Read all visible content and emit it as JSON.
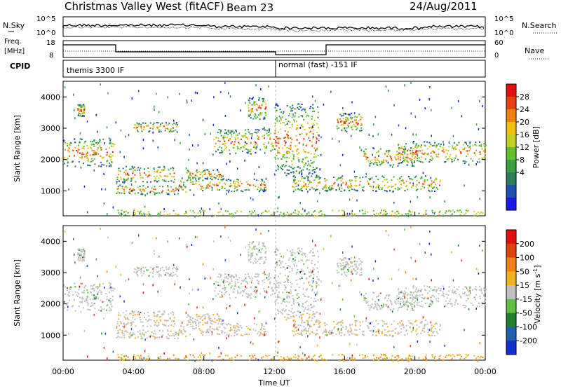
{
  "header": {
    "title": "Christmas Valley West (fitACF)",
    "beam": "Beam 23",
    "date": "24/Aug/2011"
  },
  "nsky_panel": {
    "left_label": "N.Sky",
    "right_label": "N.Search",
    "left_ticks": [
      "10^5",
      "10^0"
    ],
    "right_ticks": [
      "10^5",
      "10^0"
    ]
  },
  "freq_panel": {
    "left_label_1": "Freq.",
    "left_label_2": "[MHz]",
    "right_label": "Nave",
    "left_ticks": [
      "18",
      "8"
    ],
    "right_ticks": [
      "60",
      "0"
    ]
  },
  "cpid": {
    "label": "CPID",
    "mode_1": "themis 3300 IF",
    "mode_2": "normal (fast) -151 IF"
  },
  "chart_data": [
    {
      "type": "heatmap",
      "name": "power",
      "ylabel": "Slant Range [km]",
      "ylim": [
        200,
        4500
      ],
      "yticks": [
        "1000",
        "2000",
        "3000",
        "4000"
      ],
      "xlim": [
        0,
        24
      ],
      "colorbar": {
        "label": "Power [dB]",
        "ticks": [
          "28",
          "24",
          "20",
          "16",
          "12",
          "8",
          "4"
        ],
        "colors": [
          "#1a1ae6",
          "#2050b0",
          "#2e7d5a",
          "#3aa040",
          "#60c030",
          "#c0d020",
          "#f0c010",
          "#f08010",
          "#e84010",
          "#e01010"
        ]
      },
      "bands": [
        {
          "t0": 0.0,
          "t1": 2.9,
          "r0": 1800,
          "r1": 2700
        },
        {
          "t0": 0.8,
          "t1": 1.2,
          "r0": 3400,
          "r1": 3800
        },
        {
          "t0": 3.0,
          "t1": 6.3,
          "r0": 1300,
          "r1": 1800
        },
        {
          "t0": 3.0,
          "t1": 7.0,
          "r0": 900,
          "r1": 1200
        },
        {
          "t0": 4.0,
          "t1": 6.5,
          "r0": 2900,
          "r1": 3200
        },
        {
          "t0": 6.5,
          "t1": 11.5,
          "r0": 1000,
          "r1": 1400
        },
        {
          "t0": 7.0,
          "t1": 9.0,
          "r0": 1400,
          "r1": 1700
        },
        {
          "t0": 8.5,
          "t1": 12.0,
          "r0": 2200,
          "r1": 3000
        },
        {
          "t0": 10.5,
          "t1": 11.5,
          "r0": 3300,
          "r1": 4000
        },
        {
          "t0": 12.0,
          "t1": 14.5,
          "r0": 1500,
          "r1": 3800
        },
        {
          "t0": 13.0,
          "t1": 15.0,
          "r0": 1000,
          "r1": 1500
        },
        {
          "t0": 15.5,
          "t1": 17.0,
          "r0": 2900,
          "r1": 3500
        },
        {
          "t0": 15.0,
          "t1": 21.5,
          "r0": 1000,
          "r1": 1500
        },
        {
          "t0": 17.0,
          "t1": 20.0,
          "r0": 1800,
          "r1": 2400
        },
        {
          "t0": 19.0,
          "t1": 24.0,
          "r0": 1900,
          "r1": 2600
        },
        {
          "t0": 3.0,
          "t1": 24.0,
          "r0": 200,
          "r1": 400
        }
      ]
    },
    {
      "type": "heatmap",
      "name": "velocity",
      "ylabel": "Slant Range [km]",
      "xlabel": "Time UT",
      "ylim": [
        200,
        4500
      ],
      "yticks": [
        "1000",
        "2000",
        "3000",
        "4000"
      ],
      "xticks": [
        "00:00",
        "04:00",
        "08:00",
        "12:00",
        "16:00",
        "20:00",
        "00:00"
      ],
      "xlim": [
        0,
        24
      ],
      "colorbar": {
        "label": "Velocity [m s^-1]",
        "ticks": [
          "200",
          "100",
          "50",
          "15",
          "-15",
          "-50",
          "-100",
          "-200"
        ],
        "colors": [
          "#1030d0",
          "#2060b0",
          "#208030",
          "#60c040",
          "#c0c0c0",
          "#f0b020",
          "#f08010",
          "#e04010",
          "#e01010"
        ]
      }
    }
  ]
}
